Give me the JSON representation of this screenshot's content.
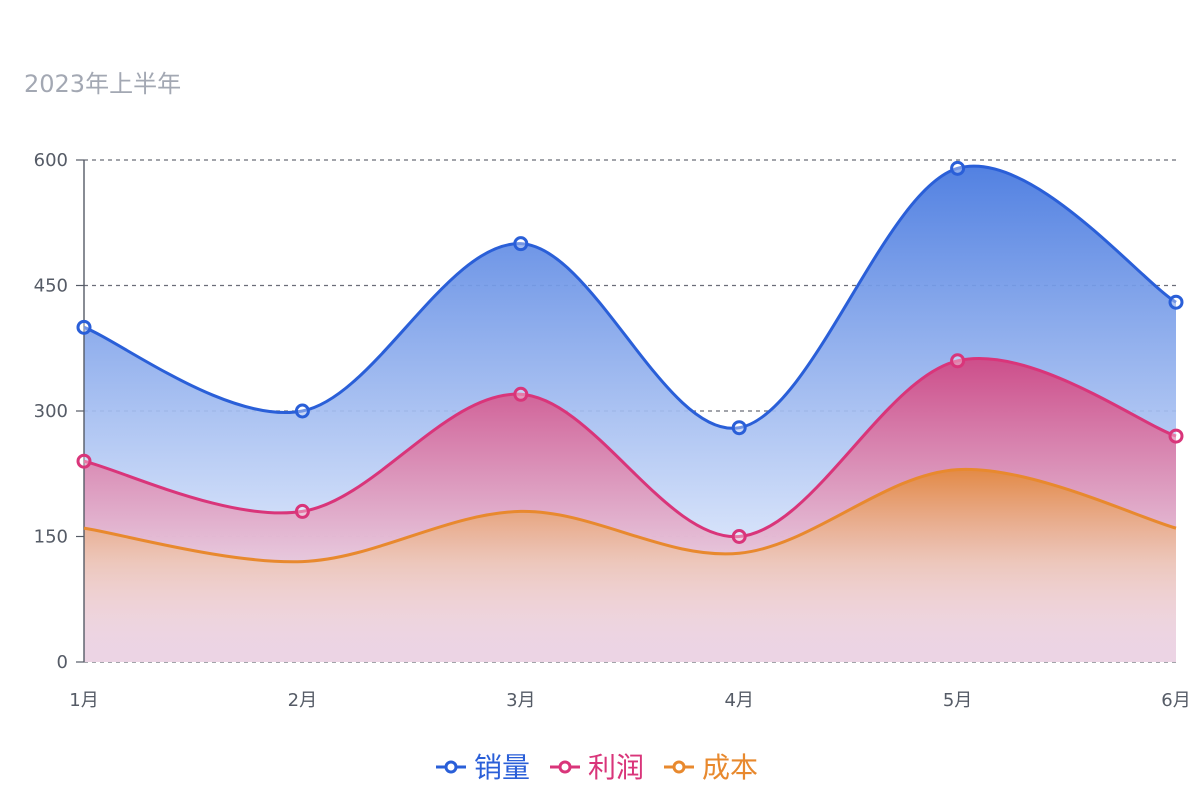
{
  "chart_data": {
    "type": "area",
    "subtitle": "2023年上半年",
    "categories": [
      "1月",
      "2月",
      "3月",
      "4月",
      "5月",
      "6月"
    ],
    "y_ticks": [
      "0",
      "150",
      "300",
      "450",
      "600"
    ],
    "ylim": [
      0,
      600
    ],
    "grid": true,
    "legend_position": "bottom-center",
    "smooth": true,
    "series": [
      {
        "name": "销量",
        "values": [
          400,
          300,
          500,
          280,
          590,
          430
        ],
        "color": "#2a5fd8",
        "marker": true,
        "fill_top": "#4a7be0",
        "fill_bottom": "#dbe6fb"
      },
      {
        "name": "利润",
        "values": [
          240,
          180,
          320,
          150,
          360,
          270
        ],
        "color": "#d9357a",
        "marker": true,
        "fill_top": "#d04a86",
        "fill_bottom": "#e8c5da"
      },
      {
        "name": "成本",
        "values": [
          160,
          120,
          180,
          130,
          230,
          160
        ],
        "color": "#e8892e",
        "marker": false,
        "fill_top": "#e38a40",
        "fill_bottom": "#ffffff"
      }
    ]
  }
}
